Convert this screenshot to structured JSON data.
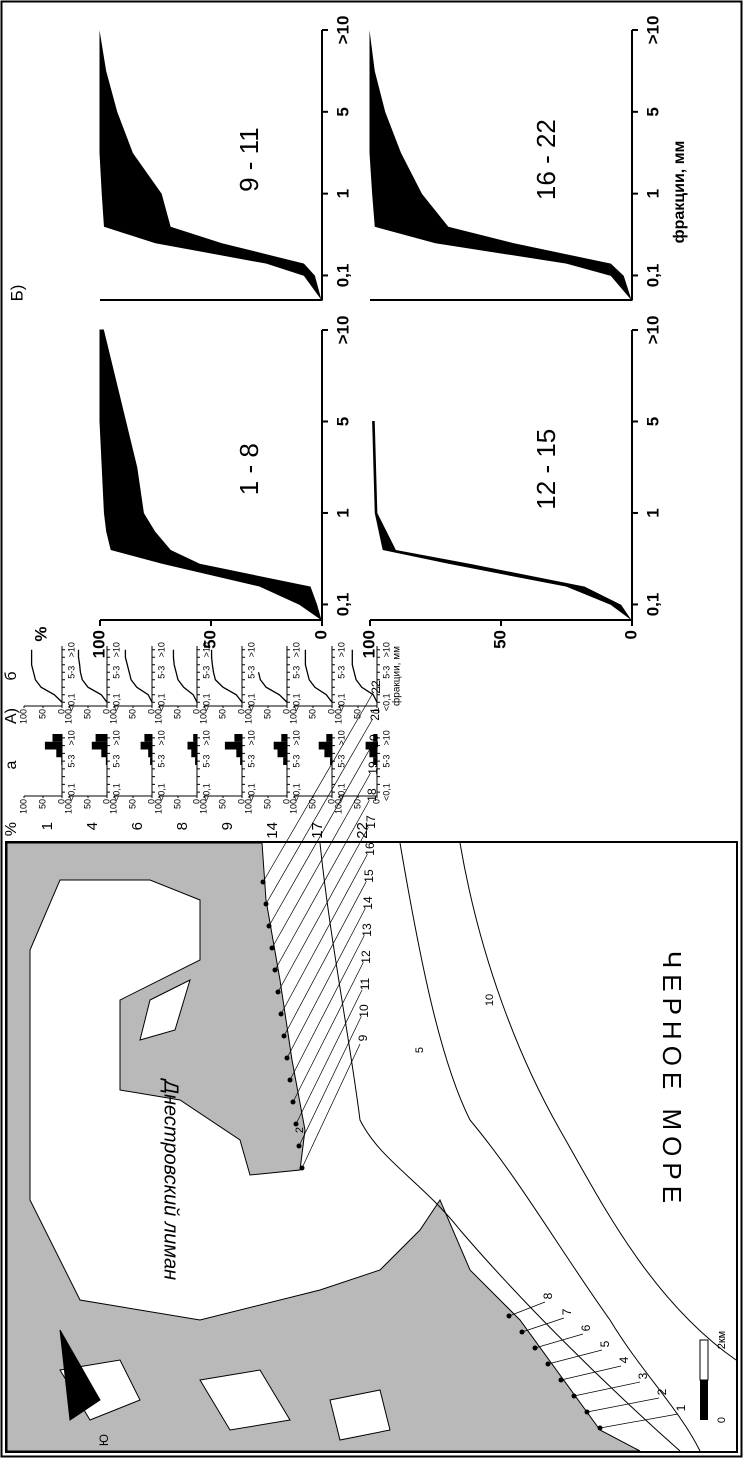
{
  "chart_data": [
    {
      "type": "area",
      "title": "1 - 8",
      "ylabel": "%",
      "panel_label": "Б)",
      "x": [
        -0.17,
        0,
        0.2,
        0.45,
        0.6,
        0.8,
        1,
        1.5,
        2,
        3
      ],
      "series": [
        {
          "color": "#000000",
          "values": [
            0,
            10,
            28,
            72,
            95,
            97,
            98,
            99,
            100,
            100
          ]
        },
        {
          "color": "#ffffff",
          "values": [
            0,
            2,
            5,
            55,
            68,
            75,
            80,
            83,
            88,
            98
          ]
        }
      ],
      "xlim": [
        -0.17,
        3
      ],
      "xticks": [
        {
          "value": 0,
          "label": "0,1"
        },
        1,
        {
          "value": 2,
          "label": "5"
        },
        {
          "value": 3,
          "label": ">10"
        }
      ],
      "ylim": [
        0,
        100
      ],
      "yticks": [
        0,
        50,
        100
      ]
    },
    {
      "type": "area",
      "title": "9 - 11",
      "x": [
        -0.3,
        0,
        0.15,
        0.4,
        0.6,
        1,
        1.5,
        2,
        2.5,
        3
      ],
      "series": [
        {
          "color": "#000000",
          "values": [
            0,
            8,
            25,
            75,
            98,
            99,
            100,
            100,
            100,
            100
          ]
        },
        {
          "color": "#ffffff",
          "values": [
            0,
            3,
            8,
            45,
            68,
            72,
            85,
            92,
            97,
            100
          ]
        }
      ],
      "xlim": [
        -0.3,
        3
      ],
      "xticks": [
        {
          "value": 0,
          "label": "0,1"
        },
        1,
        {
          "value": 2,
          "label": "5"
        },
        {
          "value": 3,
          "label": ">10"
        }
      ],
      "ylim": [
        0,
        100
      ]
    },
    {
      "type": "area",
      "title": "12 - 15",
      "x": [
        -0.17,
        0,
        0.2,
        0.45,
        0.6,
        1,
        2
      ],
      "series": [
        {
          "color": "#000000",
          "values": [
            0,
            8,
            25,
            70,
            95,
            98,
            99
          ]
        },
        {
          "color": "#ffffff",
          "values": [
            0,
            4,
            18,
            62,
            90,
            97,
            98
          ]
        }
      ],
      "xlim": [
        -0.17,
        3
      ],
      "xticks": [
        {
          "value": 0,
          "label": "0,1"
        },
        1,
        {
          "value": 2,
          "label": "5"
        },
        {
          "value": 3,
          "label": ">10"
        }
      ],
      "ylim": [
        0,
        100
      ],
      "yticks": [
        0,
        50,
        100
      ]
    },
    {
      "type": "area",
      "title": "16 - 22",
      "xlabel": "фракции, мм",
      "x": [
        -0.3,
        0,
        0.15,
        0.4,
        0.6,
        1,
        1.5,
        2,
        2.5,
        3
      ],
      "series": [
        {
          "color": "#000000",
          "values": [
            0,
            8,
            25,
            75,
            98,
            99,
            100,
            100,
            100,
            100
          ]
        },
        {
          "color": "#ffffff",
          "values": [
            0,
            3,
            8,
            45,
            70,
            80,
            88,
            94,
            98,
            100
          ]
        }
      ],
      "xlim": [
        -0.3,
        3
      ],
      "xticks": [
        {
          "value": 0,
          "label": "0,1"
        },
        1,
        {
          "value": 2,
          "label": "5"
        },
        {
          "value": 3,
          "label": ">10"
        }
      ],
      "ylim": [
        0,
        100
      ]
    },
    {
      "type": "bar",
      "title": "1",
      "subtitle": "а",
      "ylabel": "%",
      "panel_label": "А)",
      "color": "#000000",
      "categories": [
        "<0,1",
        null,
        null,
        null,
        "5-3",
        null,
        null,
        ">10"
      ],
      "values": [
        0,
        0,
        0,
        0,
        2,
        15,
        45,
        25
      ],
      "ylim": [
        0,
        100
      ],
      "yticks": [
        0,
        50,
        100
      ]
    },
    {
      "type": "line",
      "subtitle": "б",
      "color": "#000000",
      "categories": [
        "<0,1",
        null,
        null,
        null,
        "5-3",
        null,
        null,
        ">10"
      ],
      "values": [
        0,
        20,
        55,
        70,
        75,
        80,
        80,
        80
      ],
      "ylim": [
        0,
        100
      ],
      "yticks": [
        0,
        50,
        100
      ]
    },
    {
      "type": "bar",
      "title": "4",
      "color": "#000000",
      "categories": [
        "<0,1",
        null,
        null,
        null,
        "5-3",
        null,
        null,
        ">10"
      ],
      "values": [
        0,
        0,
        0,
        0,
        3,
        15,
        40,
        30
      ],
      "ylim": [
        0,
        100
      ],
      "yticks": [
        0,
        50,
        100
      ]
    },
    {
      "type": "line",
      "color": "#000000",
      "categories": [
        "<0,1",
        null,
        null,
        null,
        "5-3",
        null,
        null,
        ">10"
      ],
      "values": [
        0,
        15,
        50,
        65,
        70,
        72,
        75,
        75
      ],
      "ylim": [
        0,
        100
      ],
      "yticks": [
        0,
        50,
        100
      ]
    },
    {
      "type": "bar",
      "title": "6",
      "color": "#000000",
      "categories": [
        "<0,1",
        null,
        null,
        null,
        "5-3",
        null,
        null,
        ">10"
      ],
      "values": [
        0,
        0,
        0,
        0,
        5,
        10,
        30,
        20
      ],
      "ylim": [
        0,
        100
      ],
      "yticks": [
        0,
        50,
        100
      ]
    },
    {
      "type": "line",
      "color": "#000000",
      "categories": [
        "<0,1",
        null,
        null,
        null,
        "5-3",
        null,
        null,
        ">10"
      ],
      "values": [
        0,
        10,
        40,
        55,
        60,
        65,
        70,
        70
      ],
      "ylim": [
        0,
        100
      ],
      "yticks": [
        0,
        50,
        100
      ]
    },
    {
      "type": "bar",
      "title": "8",
      "color": "#000000",
      "categories": [
        "<0,1",
        null,
        null,
        null,
        "5-3",
        null,
        null,
        ">10"
      ],
      "values": [
        0,
        0,
        0,
        0,
        5,
        15,
        25,
        10
      ],
      "ylim": [
        0,
        100
      ],
      "yticks": [
        0,
        50,
        100
      ]
    },
    {
      "type": "line",
      "color": "#000000",
      "categories": [
        "<0,1",
        null,
        null,
        null,
        "5-3",
        null,
        null,
        ">10"
      ],
      "values": [
        0,
        10,
        35,
        50,
        55,
        60,
        62,
        62
      ],
      "ylim": [
        0,
        100
      ],
      "yticks": [
        0,
        50,
        100
      ]
    },
    {
      "type": "bar",
      "title": "9",
      "color": "#000000",
      "categories": [
        "<0,1",
        null,
        null,
        null,
        "5-3",
        null,
        null,
        ">10"
      ],
      "values": [
        0,
        0,
        0,
        0,
        5,
        15,
        45,
        20
      ],
      "ylim": [
        0,
        100
      ],
      "yticks": [
        0,
        50,
        100
      ]
    },
    {
      "type": "line",
      "color": "#000000",
      "categories": [
        "<0,1",
        null,
        null,
        null,
        "5-3",
        null,
        null,
        ">10"
      ],
      "values": [
        0,
        15,
        50,
        70,
        75,
        78,
        80,
        80
      ],
      "ylim": [
        0,
        100
      ],
      "yticks": [
        0,
        50,
        100
      ]
    },
    {
      "type": "bar",
      "title": "14",
      "color": "#000000",
      "categories": [
        "<0,1",
        null,
        null,
        null,
        "5-3",
        null,
        null,
        ">10"
      ],
      "values": [
        0,
        0,
        0,
        0,
        10,
        25,
        35,
        15
      ],
      "ylim": [
        0,
        100
      ],
      "yticks": [
        0,
        50,
        100
      ]
    },
    {
      "type": "line",
      "color": "#000000",
      "categories": [
        "<0,1",
        null,
        null,
        null,
        "5-3",
        null,
        null,
        ">10"
      ],
      "values": [
        0,
        20,
        55,
        70,
        75,
        null,
        null,
        null
      ],
      "ylim": [
        0,
        100
      ],
      "yticks": [
        0,
        50,
        100
      ]
    },
    {
      "type": "bar",
      "title": "17",
      "color": "#000000",
      "categories": [
        "<0,1",
        null,
        null,
        null,
        "5-3",
        null,
        null,
        ">10"
      ],
      "values": [
        0,
        0,
        0,
        0,
        5,
        20,
        35,
        15
      ],
      "ylim": [
        0,
        100
      ],
      "yticks": [
        0,
        50,
        100
      ]
    },
    {
      "type": "line",
      "color": "#000000",
      "categories": [
        "<0,1",
        null,
        null,
        null,
        "5-3",
        null,
        null,
        ">10"
      ],
      "values": [
        0,
        15,
        45,
        60,
        65,
        70,
        70,
        70
      ],
      "ylim": [
        0,
        100
      ],
      "yticks": [
        0,
        50,
        100
      ]
    },
    {
      "type": "bar",
      "title": "22",
      "color": "#000000",
      "categories": [
        "<0,1",
        null,
        null,
        null,
        "5-3",
        null,
        null,
        ">10"
      ],
      "values": [
        0,
        0,
        0,
        0,
        10,
        20,
        30,
        10
      ],
      "ylim": [
        0,
        100
      ],
      "yticks": [
        0,
        50,
        100
      ]
    },
    {
      "type": "line",
      "xlabel": "фракции, мм",
      "color": "#000000",
      "categories": [
        "<0,1",
        null,
        null,
        null,
        "5-3",
        null,
        null,
        ">10"
      ],
      "values": [
        0,
        10,
        40,
        55,
        60,
        65,
        65,
        65
      ],
      "ylim": [
        0,
        100
      ],
      "yticks": [
        0,
        50,
        100
      ]
    }
  ],
  "map": {
    "liman": "Днестровский лиман",
    "sea": "ЧЕРНОЕ МОРЕ",
    "north": "Ю",
    "stations": [
      "1",
      "2",
      "3",
      "4",
      "5",
      "6",
      "7",
      "8",
      "9",
      "10",
      "11",
      "12",
      "13",
      "14",
      "15",
      "16",
      "17",
      "18",
      "19",
      "20",
      "21",
      "22"
    ],
    "isobaths": [
      "2",
      "5",
      "10"
    ],
    "scale": [
      "0",
      "2км"
    ]
  }
}
